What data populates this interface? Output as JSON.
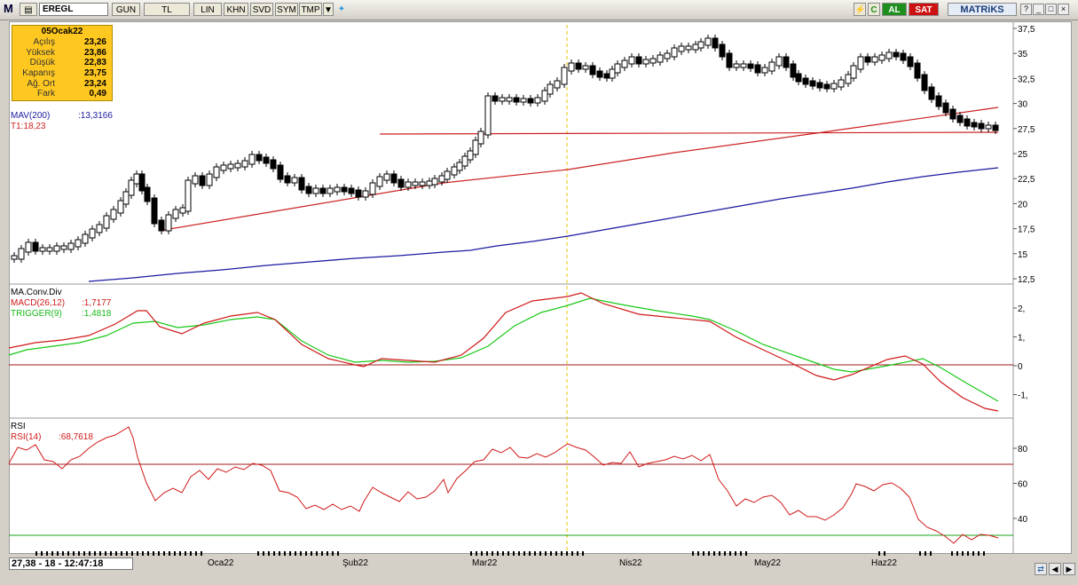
{
  "toolbar": {
    "logo": "M",
    "symbol": "EREGL",
    "buttons": [
      "GUN",
      "TL",
      "LIN",
      "KHN",
      "SVD",
      "SYM",
      "TMP"
    ],
    "al_label": "AL",
    "sat_label": "SAT",
    "c_label": "C",
    "brand": "MATRiKS"
  },
  "info": {
    "date": "05Ocak22",
    "rows": [
      {
        "k": "Açılış",
        "v": "23,26"
      },
      {
        "k": "Yüksek",
        "v": "23,86"
      },
      {
        "k": "Düşük",
        "v": "22,83"
      },
      {
        "k": "Kapanış",
        "v": "23,75"
      },
      {
        "k": "Ağ. Ort",
        "v": "23,24"
      },
      {
        "k": "Fark",
        "v": "0,49"
      }
    ]
  },
  "price_panel": {
    "mav_label": "MAV(200)",
    "mav_value": ":13,3166",
    "t1_label": "T1:18,23",
    "y_ticks": [
      "37,5",
      "35",
      "32,5",
      "30",
      "27,5",
      "25",
      "22,5",
      "20",
      "17,5",
      "15",
      "12,5"
    ],
    "colors": {
      "mav": "#1a1aa0",
      "trend": "#cc2222"
    }
  },
  "macd_panel": {
    "title": "MA.Conv.Div",
    "macd_label": "MACD(26,12)",
    "macd_value": ":1,7177",
    "trigger_label": "TRIGGER(9)",
    "trigger_value": ":1,4818",
    "y_ticks": [
      "2,",
      "1,",
      "0",
      "-1,"
    ],
    "colors": {
      "macd": "#d01818",
      "trigger": "#18c818"
    }
  },
  "rsi_panel": {
    "title": "RSI",
    "rsi_label": "RSI(14)",
    "rsi_value": ":68,7618",
    "y_ticks": [
      "80",
      "60",
      "40"
    ]
  },
  "x_axis": {
    "labels": [
      "Oca22",
      "Şub22",
      "Mar22",
      "Nis22",
      "May22",
      "Haz22"
    ]
  },
  "status": {
    "readout": "27,38 - 18 - 12:47:18"
  }
}
